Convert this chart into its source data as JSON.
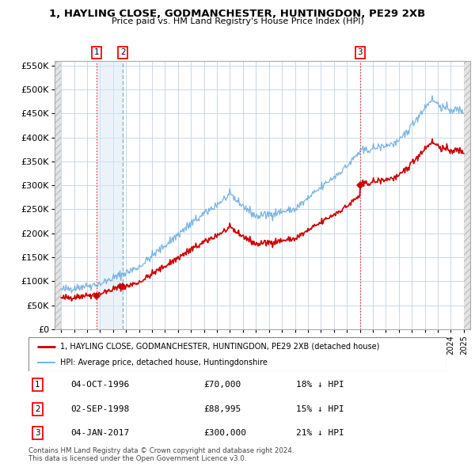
{
  "title1": "1, HAYLING CLOSE, GODMANCHESTER, HUNTINGDON, PE29 2XB",
  "title2": "Price paid vs. HM Land Registry's House Price Index (HPI)",
  "hpi_color": "#6aabe0",
  "price_color": "#cc0000",
  "marker_color": "#cc0000",
  "grid_color": "#c8d8e8",
  "purchases": [
    {
      "num": 1,
      "date_x": 1996.75,
      "price": 70000,
      "label": "04-OCT-1996",
      "pct": "18%",
      "dir": "↓"
    },
    {
      "num": 2,
      "date_x": 1998.75,
      "price": 88995,
      "label": "02-SEP-1998",
      "pct": "15%",
      "dir": "↓"
    },
    {
      "num": 3,
      "date_x": 2017.01,
      "price": 300000,
      "label": "04-JAN-2017",
      "pct": "21%",
      "dir": "↓"
    }
  ],
  "legend_property": "1, HAYLING CLOSE, GODMANCHESTER, HUNTINGDON, PE29 2XB (detached house)",
  "legend_hpi": "HPI: Average price, detached house, Huntingdonshire",
  "footnote1": "Contains HM Land Registry data © Crown copyright and database right 2024.",
  "footnote2": "This data is licensed under the Open Government Licence v3.0.",
  "ylim": [
    0,
    560000
  ],
  "yticks": [
    0,
    50000,
    100000,
    150000,
    200000,
    250000,
    300000,
    350000,
    400000,
    450000,
    500000,
    550000
  ],
  "xlim_start": 1993.5,
  "xlim_end": 2025.5
}
